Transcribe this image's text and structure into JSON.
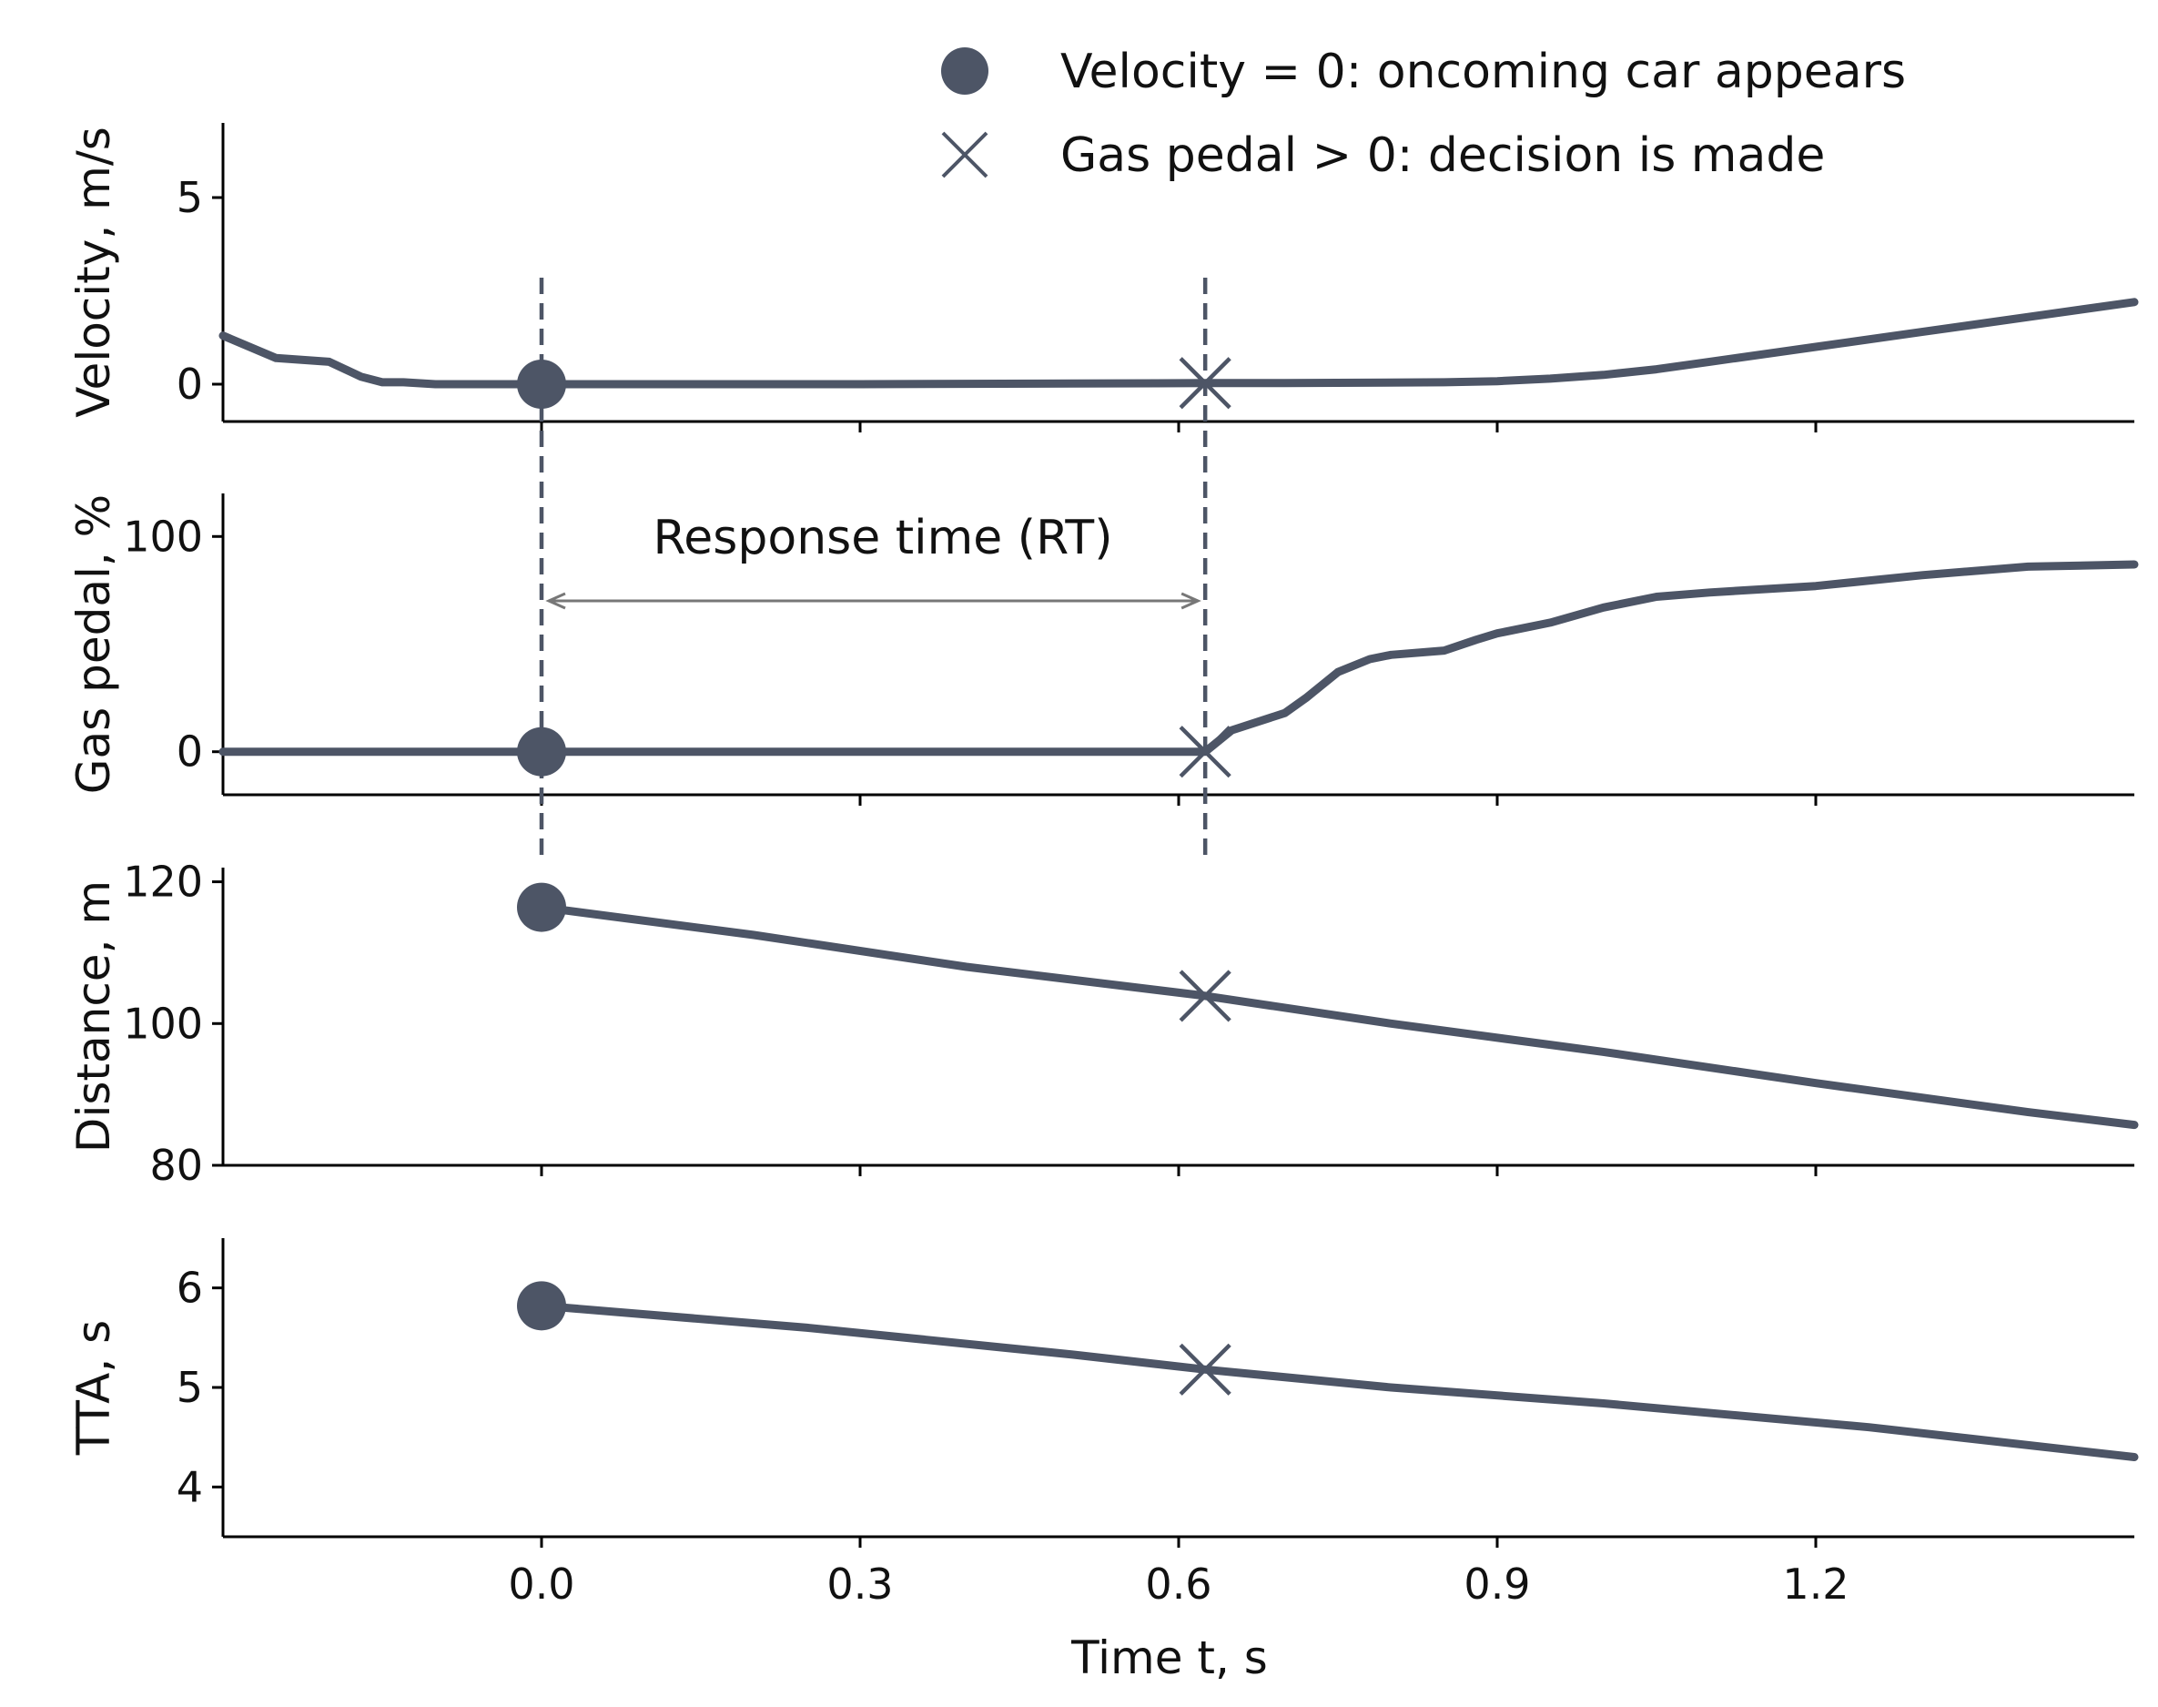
{
  "figure": {
    "legend": [
      {
        "marker": "circle",
        "label": "Velocity = 0: oncoming car appears"
      },
      {
        "marker": "x",
        "label": "Gas pedal > 0: decision is made"
      }
    ],
    "annotation": {
      "text": "Response time (RT)",
      "from_x": 0.0,
      "to_x": 0.625
    },
    "colors": {
      "series": "#4d5566",
      "annotation_arrow": "#777777"
    }
  },
  "chart_data": [
    {
      "type": "line",
      "ylabel": "Velocity, m/s",
      "xlim": [
        -0.3,
        1.5
      ],
      "ylim": [
        -1,
        7
      ],
      "yticks": [
        0,
        5
      ],
      "x": [
        -0.3,
        -0.25,
        -0.2,
        -0.17,
        -0.15,
        -0.13,
        -0.1,
        -0.05,
        0.0,
        0.1,
        0.3,
        0.5,
        0.625,
        0.7,
        0.85,
        0.9,
        0.95,
        1.0,
        1.05,
        1.1,
        1.2,
        1.3,
        1.4,
        1.5
      ],
      "y": [
        1.3,
        0.7,
        0.6,
        0.2,
        0.05,
        0.05,
        0.0,
        0.0,
        0.0,
        0.0,
        0.0,
        0.02,
        0.03,
        0.03,
        0.05,
        0.08,
        0.15,
        0.25,
        0.4,
        0.6,
        1.0,
        1.4,
        1.8,
        2.2
      ],
      "markers": [
        {
          "type": "circle",
          "x": 0.0,
          "y": 0.0
        },
        {
          "type": "x",
          "x": 0.625,
          "y": 0.03
        }
      ],
      "grid": false
    },
    {
      "type": "line",
      "ylabel": "Gas pedal, %",
      "xlim": [
        -0.3,
        1.5
      ],
      "ylim": [
        -20,
        120
      ],
      "yticks": [
        0,
        100
      ],
      "x": [
        -0.3,
        0.0,
        0.3,
        0.625,
        0.65,
        0.7,
        0.72,
        0.75,
        0.78,
        0.8,
        0.85,
        0.88,
        0.9,
        0.95,
        1.0,
        1.05,
        1.1,
        1.2,
        1.3,
        1.4,
        1.5
      ],
      "y": [
        0,
        0,
        0,
        0,
        10,
        18,
        25,
        37,
        43,
        45,
        47,
        52,
        55,
        60,
        67,
        72,
        74,
        77,
        82,
        86,
        87
      ],
      "markers": [
        {
          "type": "circle",
          "x": 0.0,
          "y": 0
        },
        {
          "type": "x",
          "x": 0.625,
          "y": 0
        }
      ],
      "grid": false
    },
    {
      "type": "line",
      "ylabel": "Distance, m",
      "xlim": [
        -0.3,
        1.5
      ],
      "ylim": [
        80,
        122
      ],
      "yticks": [
        80,
        100,
        120
      ],
      "x": [
        0.0,
        0.2,
        0.4,
        0.625,
        0.8,
        1.0,
        1.2,
        1.4,
        1.5
      ],
      "y": [
        116.4,
        112.5,
        108.0,
        103.9,
        100.0,
        96.0,
        91.6,
        87.5,
        85.7
      ],
      "markers": [
        {
          "type": "circle",
          "x": 0.0,
          "y": 116.4
        },
        {
          "type": "x",
          "x": 0.625,
          "y": 103.9
        }
      ],
      "grid": false
    },
    {
      "type": "line",
      "ylabel": "TTA, s",
      "xlim": [
        -0.3,
        1.5
      ],
      "ylim": [
        3.5,
        6.5
      ],
      "yticks": [
        4,
        5,
        6
      ],
      "x": [
        0.0,
        0.25,
        0.5,
        0.625,
        0.8,
        1.0,
        1.25,
        1.5
      ],
      "y": [
        5.82,
        5.6,
        5.33,
        5.18,
        5.0,
        4.84,
        4.6,
        4.3
      ],
      "markers": [
        {
          "type": "circle",
          "x": 0.0,
          "y": 5.82
        },
        {
          "type": "x",
          "x": 0.625,
          "y": 5.18
        }
      ],
      "xlabel": "Time t, s",
      "xticks": [
        0.0,
        0.3,
        0.6,
        0.9,
        1.2
      ],
      "xtick_labels": [
        "0.0",
        "0.3",
        "0.6",
        "0.9",
        "1.2"
      ],
      "grid": false
    }
  ]
}
